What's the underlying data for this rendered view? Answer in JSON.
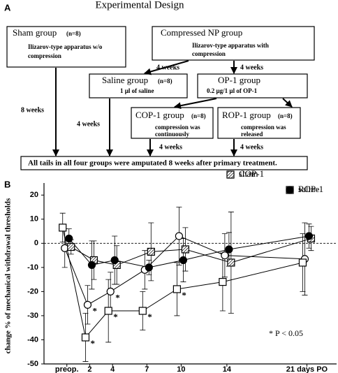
{
  "panel_a": {
    "label": "A",
    "title": "Experimental Design",
    "boxes": [
      {
        "title": "Sham group",
        "n": "(n=8)",
        "detail": [
          "Ilizarov-type apparatus w/o",
          "compression"
        ]
      },
      {
        "title": "Compressed NP group",
        "detail": [
          "Ilizarov-type apparatus with",
          "compression"
        ]
      },
      {
        "title": "Saline group",
        "n": "(n=8)",
        "detail": [
          "1 µl of saline"
        ]
      },
      {
        "title": "OP-1 group",
        "detail": [
          "0.2 µg/1 µl of OP-1"
        ]
      },
      {
        "title": "COP-1 group",
        "n": "(n=8)",
        "detail": [
          "compression was",
          "continuously"
        ]
      },
      {
        "title": "ROP-1 group",
        "n": "(n=8)",
        "detail": [
          "compression was",
          "released"
        ]
      },
      {
        "title": "All tails in all four groups were amputated 8 weeks after primary treatment."
      }
    ],
    "arrow_labels": [
      "4 weeks",
      "4 weeks",
      "8 weeks",
      "4 weeks",
      "4 weeks",
      "4 weeks"
    ]
  },
  "chart_data": {
    "type": "line",
    "panel_label": "B",
    "y_label": "change % of mechanical withdrawal thresholds",
    "x": [
      0,
      2,
      4,
      7,
      10,
      14,
      21
    ],
    "xlim": [
      -2,
      23.6
    ],
    "xticks": [
      {
        "value": 0,
        "label": "preop."
      },
      2,
      4,
      7,
      10,
      14,
      {
        "value": 21,
        "label": "21 days PO"
      }
    ],
    "ylim": [
      -50,
      25
    ],
    "yticks": [
      -50,
      -40,
      -30,
      -20,
      -10,
      0,
      10,
      20
    ],
    "reference_line": 0,
    "sig_label": "*",
    "annotation": "* P < 0.05",
    "series": [
      {
        "name": "sham",
        "color": "#000000",
        "marker": "circle-open",
        "values": [
          -2,
          -25.5,
          -20,
          -11,
          3,
          -5,
          -6.5
        ],
        "errors": [
          8,
          8,
          8,
          8,
          12,
          9,
          15
        ],
        "significant": [
          1,
          2
        ]
      },
      {
        "name": "saline",
        "color": "#000000",
        "marker": "square-open",
        "values": [
          6.5,
          -39,
          -28,
          -28,
          -19,
          -16,
          -8
        ],
        "errors": [
          6,
          10,
          13,
          8,
          11,
          12,
          12
        ],
        "significant": [
          1,
          2,
          3,
          4
        ]
      },
      {
        "name": "COP-1",
        "color": "#000000",
        "marker": "square-hatched",
        "values": [
          -1.5,
          -7,
          -9,
          -3.5,
          -2.5,
          -8,
          2
        ],
        "errors": [
          3,
          8,
          8,
          12,
          9,
          21,
          5
        ],
        "significant": []
      },
      {
        "name": "ROP-1",
        "color": "#000000",
        "marker": "circle-filled",
        "values": [
          2,
          -9,
          -7,
          -10,
          -7,
          -2.5,
          3
        ],
        "errors": [
          4,
          10,
          10,
          3,
          9,
          7,
          5
        ],
        "significant": []
      }
    ]
  }
}
